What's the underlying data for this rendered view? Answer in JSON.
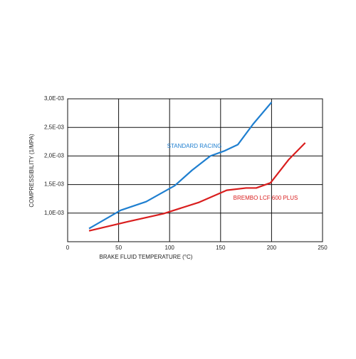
{
  "chart_data": {
    "type": "line",
    "x_label": "BRAKE FLUID TEMPERATURE (°C)",
    "y_label": "COMPRESSIBILITY  (1/MPA)",
    "series": [
      {
        "name": "STANDARD RACING",
        "color": "#1f7fd0",
        "x": [
          21,
          52,
          77,
          105,
          122,
          140,
          154,
          167,
          182,
          200
        ],
        "values": [
          0.00073,
          0.00105,
          0.0012,
          0.00148,
          0.00175,
          0.002,
          0.00209,
          0.0022,
          0.00256,
          0.00294
        ]
      },
      {
        "name": "BREMBO LCF 600 PLUS",
        "color": "#d91e1e",
        "x": [
          21,
          59,
          94,
          129,
          156,
          175,
          185,
          199,
          217,
          233
        ],
        "values": [
          0.00069,
          0.00085,
          0.00099,
          0.00119,
          0.0014,
          0.00144,
          0.00144,
          0.00153,
          0.00194,
          0.00223
        ]
      }
    ],
    "xlim": [
      0,
      250
    ],
    "xticks": [
      0,
      50,
      100,
      150,
      200,
      250
    ],
    "ylim": [
      0.0005,
      0.003
    ],
    "yticks": [
      {
        "value": 0.001,
        "label": "1,0E-03"
      },
      {
        "value": 0.0015,
        "label": "1,5E-03"
      },
      {
        "value": 0.002,
        "label": "2,0E-03"
      },
      {
        "value": 0.0025,
        "label": "2,5E-03"
      },
      {
        "value": 0.003,
        "label": "3,0E-03"
      }
    ],
    "grid": true
  }
}
